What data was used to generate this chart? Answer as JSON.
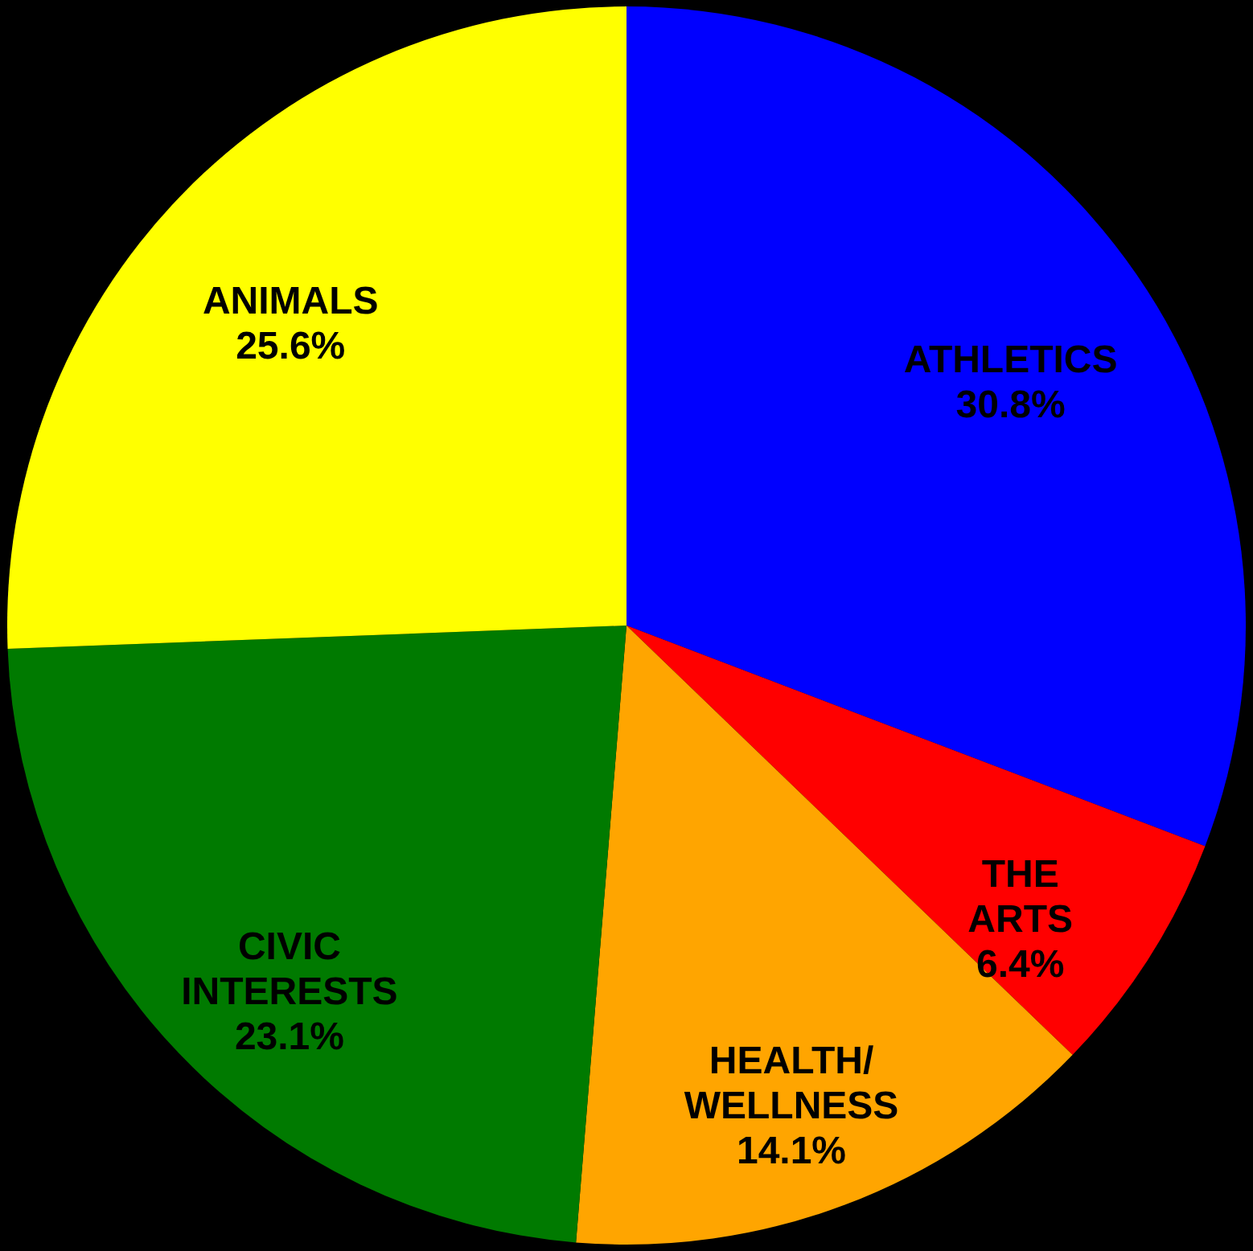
{
  "chart_data": {
    "type": "pie",
    "categories": [
      "ATHLETICS",
      "THE ARTS",
      "HEALTH/WELLNESS",
      "CIVIC INTERESTS",
      "ANIMALS"
    ],
    "values": [
      30.8,
      6.4,
      14.1,
      23.1,
      25.6
    ],
    "colors": [
      "#0000ff",
      "#ff0000",
      "#ffa500",
      "#007a00",
      "#ffff00"
    ],
    "value_labels": [
      "30.8%",
      "6.4%",
      "14.1%",
      "23.1%",
      "25.6%"
    ]
  }
}
